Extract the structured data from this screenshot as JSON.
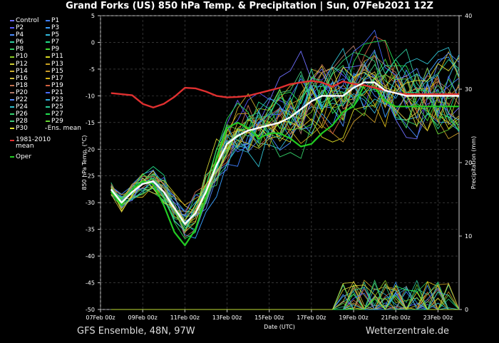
{
  "title": "Grand Forks  (US)  850 hPa Temp. & Precipitation | Sun, 07Feb2021 12Z",
  "footer_left": "GFS Ensemble, 48N, 97W",
  "footer_right": "Wetterzentrale.de",
  "legend": {
    "members": [
      {
        "label": "Control",
        "color": "#6f6fff"
      },
      {
        "label": "P1",
        "color": "#3f7fff"
      },
      {
        "label": "P2",
        "color": "#5a5aff"
      },
      {
        "label": "P3",
        "color": "#3aa0ff"
      },
      {
        "label": "P4",
        "color": "#4a8cff"
      },
      {
        "label": "P5",
        "color": "#33bbdd"
      },
      {
        "label": "P6",
        "color": "#2fcfa0"
      },
      {
        "label": "P7",
        "color": "#22dd88"
      },
      {
        "label": "P8",
        "color": "#33cc66"
      },
      {
        "label": "P9",
        "color": "#44dd33"
      },
      {
        "label": "P10",
        "color": "#88cc22"
      },
      {
        "label": "P11",
        "color": "#d8d822"
      },
      {
        "label": "P12",
        "color": "#cccc33"
      },
      {
        "label": "P13",
        "color": "#c8a020"
      },
      {
        "label": "P14",
        "color": "#ccb030"
      },
      {
        "label": "P15",
        "color": "#c89a28"
      },
      {
        "label": "P16",
        "color": "#d0c040"
      },
      {
        "label": "P17",
        "color": "#d8b818"
      },
      {
        "label": "P18",
        "color": "#c07050"
      },
      {
        "label": "P19",
        "color": "#d06040"
      },
      {
        "label": "P20",
        "color": "#b07868"
      },
      {
        "label": "P21",
        "color": "#4a6cff"
      },
      {
        "label": "P22",
        "color": "#5588ff"
      },
      {
        "label": "P23",
        "color": "#33b0e0"
      },
      {
        "label": "P24",
        "color": "#30c0d0"
      },
      {
        "label": "P25",
        "color": "#2acc99"
      },
      {
        "label": "P26",
        "color": "#33d070"
      },
      {
        "label": "P27",
        "color": "#22e050"
      },
      {
        "label": "P28",
        "color": "#40c878"
      },
      {
        "label": "P29",
        "color": "#66d433"
      },
      {
        "label": "P30",
        "color": "#e0e030"
      },
      {
        "label": "Ens. mean",
        "color": "#ffffff"
      },
      {
        "label": "1981-2010\nmean",
        "color": "#e03030"
      },
      {
        "label": "Oper",
        "color": "#22cc22"
      }
    ]
  },
  "chart_data": {
    "type": "line",
    "title": "Grand Forks  (US)  850 hPa Temp. & Precipitation | Sun, 07Feb2021 12Z",
    "xlabel": "Date (UTC)",
    "ylabel": "850 hPa Temp. (°C)",
    "y2label": "Precipitation (mm)",
    "x_ticks": [
      "07Feb 00z",
      "09Feb 00z",
      "11Feb 00z",
      "13Feb 00z",
      "15Feb 00z",
      "17Feb 00z",
      "19Feb 00z",
      "21Feb 00z",
      "23Feb 00z"
    ],
    "ylim": [
      -50,
      5
    ],
    "y_ticks": [
      5,
      0,
      -5,
      -10,
      -15,
      -20,
      -25,
      -30,
      -35,
      -40,
      -45,
      -50
    ],
    "y2lim": [
      0,
      40
    ],
    "y2_ticks": [
      40,
      30,
      20,
      10,
      0
    ],
    "grid": true,
    "legend_position": "left outside",
    "x_hours": [
      12,
      24,
      36,
      48,
      60,
      72,
      84,
      96,
      108,
      120,
      132,
      144,
      156,
      168,
      180,
      192,
      204,
      216,
      228,
      240,
      252,
      264,
      276,
      288,
      300,
      312,
      324,
      336,
      348,
      360,
      372,
      384,
      396,
      408
    ],
    "series": [
      {
        "name": "Ens. mean",
        "values": [
          -27.5,
          -30,
          -28,
          -26.5,
          -26,
          -28,
          -31,
          -34,
          -32,
          -28,
          -23,
          -19,
          -17.5,
          -16.5,
          -16,
          -15.5,
          -15,
          -14,
          -12.5,
          -11,
          -10,
          -10,
          -10,
          -8.5,
          -7.5,
          -7.5,
          -9,
          -9.5,
          -10,
          -10,
          -10,
          -10,
          -10,
          -10
        ]
      },
      {
        "name": "1981-2010\nmean",
        "values": [
          -9.5,
          -9.7,
          -9.9,
          -11.5,
          -12.2,
          -11.5,
          -10.2,
          -8.5,
          -8.6,
          -9.2,
          -10,
          -10.3,
          -10.2,
          -10,
          -9.5,
          -9,
          -8.5,
          -7.8,
          -7.5,
          -7.2,
          -7.5,
          -8.3,
          -7.3,
          -7.8,
          -8,
          -8.5,
          -9,
          -9.5,
          -9.7,
          -9.7,
          -9.7,
          -9.7,
          -9.7,
          -9.7
        ]
      },
      {
        "name": "Oper",
        "values": [
          -28,
          -30.5,
          -27.5,
          -26,
          -26.5,
          -30.5,
          -35.5,
          -38,
          -35,
          -29,
          -22,
          -16,
          -15,
          -16,
          -18,
          -17,
          -17,
          -18,
          -19.5,
          -19,
          -17,
          -15.5,
          -13,
          -12,
          -8,
          -8.5,
          -11,
          -12,
          -12,
          -12,
          -12,
          -12,
          -12,
          -12
        ]
      }
    ]
  }
}
